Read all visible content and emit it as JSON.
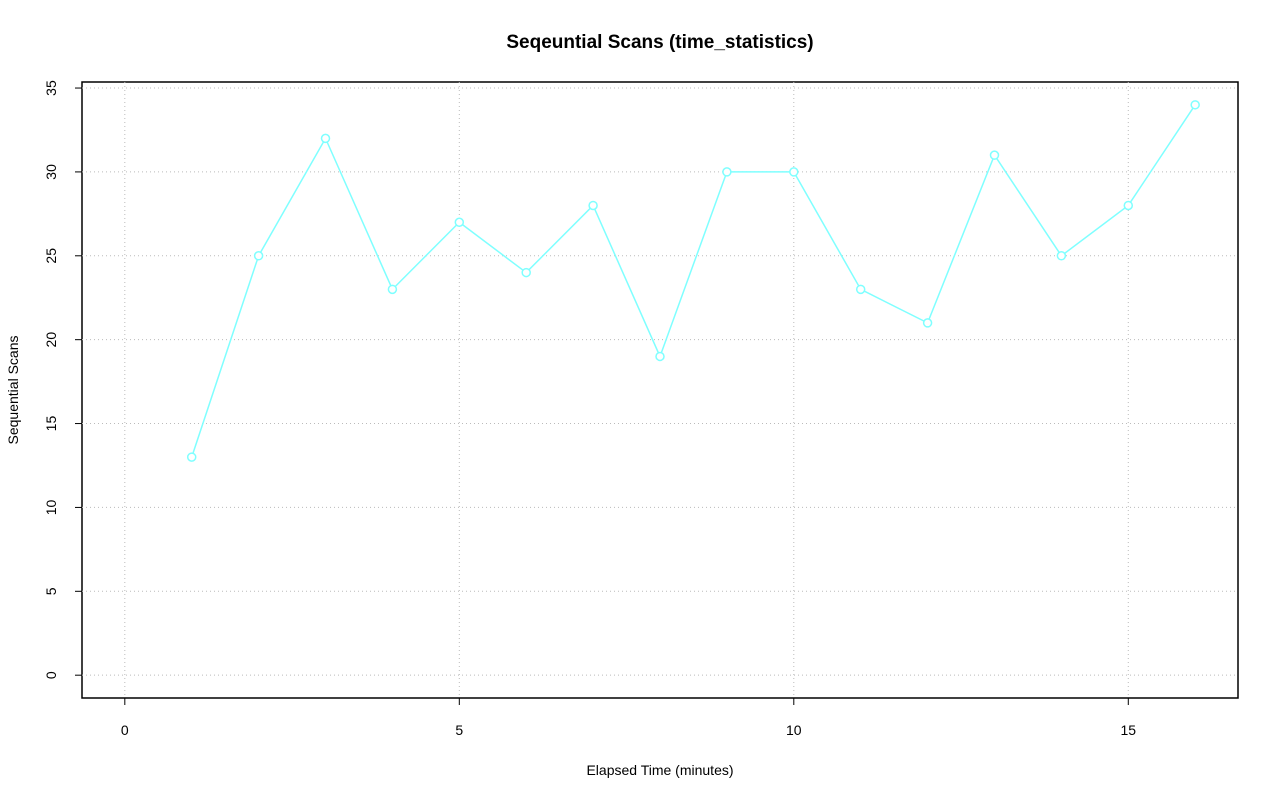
{
  "chart_data": {
    "type": "line",
    "title": "Seqeuntial Scans (time_statistics)",
    "x_label": "Elapsed Time (minutes)",
    "y_label": "Sequential Scans",
    "x": [
      1,
      2,
      3,
      4,
      5,
      6,
      7,
      8,
      9,
      10,
      11,
      12,
      13,
      14,
      15,
      16
    ],
    "series": [
      {
        "name": "Sequential Scans",
        "color": "#7fffff",
        "values": [
          13,
          25,
          32,
          23,
          27,
          24,
          28,
          19,
          30,
          30,
          23,
          21,
          31,
          25,
          28,
          34
        ]
      }
    ],
    "xlim": [
      -0.64,
      16.64
    ],
    "xticks": [
      0,
      5,
      10,
      15
    ],
    "ylim": [
      -1.36,
      35.36
    ],
    "yticks": [
      0,
      5,
      10,
      15,
      20,
      25,
      30,
      35
    ],
    "grid": true
  }
}
